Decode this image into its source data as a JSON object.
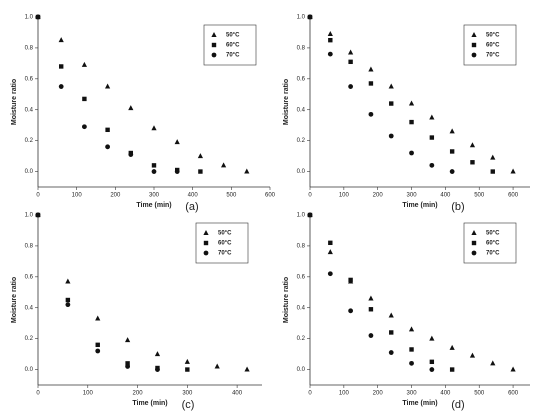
{
  "chart_data": [
    {
      "type": "scatter",
      "label": "(a)",
      "xlabel": "Time (min)",
      "ylabel": "Moisture ratio",
      "xlim": [
        0,
        600
      ],
      "xticks": [
        0,
        100,
        200,
        300,
        400,
        500,
        600
      ],
      "ylim": [
        -0.1,
        1.0
      ],
      "yticks": [
        {
          "value": 0,
          "label": "0.0"
        },
        0.2,
        0.4,
        0.6,
        0.8,
        {
          "value": 1,
          "label": "1.0"
        }
      ],
      "legend": "upper right",
      "series": [
        {
          "name": "50°C",
          "color": "#111111",
          "marker": "triangle",
          "x": [
            0,
            60,
            120,
            180,
            240,
            300,
            360,
            420,
            480,
            540
          ],
          "values": [
            1.0,
            0.85,
            0.69,
            0.55,
            0.41,
            0.28,
            0.19,
            0.1,
            0.04,
            0.0
          ]
        },
        {
          "name": "60°C",
          "color": "#111111",
          "marker": "square",
          "x": [
            0,
            60,
            120,
            180,
            240,
            300,
            360,
            420
          ],
          "values": [
            1.0,
            0.68,
            0.47,
            0.27,
            0.12,
            0.04,
            0.01,
            0.0
          ]
        },
        {
          "name": "70°C",
          "color": "#111111",
          "marker": "circle",
          "x": [
            0,
            60,
            120,
            180,
            240,
            300,
            360
          ],
          "values": [
            1.0,
            0.55,
            0.29,
            0.16,
            0.11,
            0.0,
            0.0
          ]
        }
      ]
    },
    {
      "type": "scatter",
      "label": "(b)",
      "xlabel": "Time (min)",
      "ylabel": "Moisture ratio",
      "xlim": [
        0,
        650
      ],
      "xticks": [
        0,
        100,
        200,
        300,
        400,
        500,
        600
      ],
      "ylim": [
        -0.1,
        1.0
      ],
      "yticks": [
        {
          "value": 0,
          "label": "0.0"
        },
        0.2,
        0.4,
        0.6,
        0.8,
        {
          "value": 1,
          "label": "1.0"
        }
      ],
      "legend": "upper right",
      "series": [
        {
          "name": "50°C",
          "color": "#111111",
          "marker": "triangle",
          "x": [
            0,
            60,
            120,
            180,
            240,
            300,
            360,
            420,
            480,
            540,
            600
          ],
          "values": [
            1.0,
            0.89,
            0.77,
            0.66,
            0.55,
            0.44,
            0.35,
            0.26,
            0.17,
            0.09,
            0.0
          ]
        },
        {
          "name": "60°C",
          "color": "#111111",
          "marker": "square",
          "x": [
            0,
            60,
            120,
            180,
            240,
            300,
            360,
            420,
            480,
            540
          ],
          "values": [
            1.0,
            0.85,
            0.71,
            0.57,
            0.44,
            0.32,
            0.22,
            0.13,
            0.06,
            0.0
          ]
        },
        {
          "name": "70°C",
          "color": "#111111",
          "marker": "circle",
          "x": [
            0,
            60,
            120,
            180,
            240,
            300,
            360,
            420
          ],
          "values": [
            1.0,
            0.76,
            0.55,
            0.37,
            0.23,
            0.12,
            0.04,
            0.0
          ]
        }
      ]
    },
    {
      "type": "scatter",
      "label": "(c)",
      "xlabel": "Time (min)",
      "ylabel": "Moisture ratio",
      "xlim": [
        0,
        450
      ],
      "xticks": [
        0,
        100,
        200,
        300,
        400
      ],
      "ylim": [
        -0.1,
        1.0
      ],
      "yticks": [
        {
          "value": 0,
          "label": "0.0"
        },
        0.2,
        0.4,
        0.6,
        0.8,
        {
          "value": 1,
          "label": "1.0"
        }
      ],
      "legend": "upper right",
      "series": [
        {
          "name": "50°C",
          "color": "#111111",
          "marker": "triangle",
          "x": [
            0,
            60,
            120,
            180,
            240,
            300,
            360,
            420
          ],
          "values": [
            1.0,
            0.57,
            0.33,
            0.19,
            0.1,
            0.05,
            0.02,
            0.0
          ]
        },
        {
          "name": "60°C",
          "color": "#111111",
          "marker": "square",
          "x": [
            0,
            60,
            120,
            180,
            240,
            300
          ],
          "values": [
            1.0,
            0.45,
            0.16,
            0.04,
            0.01,
            0.0
          ]
        },
        {
          "name": "70°C",
          "color": "#111111",
          "marker": "circle",
          "x": [
            0,
            60,
            120,
            180,
            240
          ],
          "values": [
            1.0,
            0.42,
            0.12,
            0.02,
            0.0
          ]
        }
      ]
    },
    {
      "type": "scatter",
      "label": "(d)",
      "xlabel": "Time (min)",
      "ylabel": "Moisture ratio",
      "xlim": [
        0,
        650
      ],
      "xticks": [
        0,
        100,
        200,
        300,
        400,
        500,
        600
      ],
      "ylim": [
        -0.1,
        1.0
      ],
      "yticks": [
        {
          "value": 0,
          "label": "0.0"
        },
        0.2,
        0.4,
        0.6,
        0.8,
        {
          "value": 1,
          "label": "1.0"
        }
      ],
      "legend": "upper right",
      "series": [
        {
          "name": "50°C",
          "color": "#111111",
          "marker": "triangle",
          "x": [
            0,
            60,
            120,
            180,
            240,
            300,
            360,
            420,
            480,
            540,
            600
          ],
          "values": [
            1.0,
            0.76,
            0.57,
            0.46,
            0.35,
            0.26,
            0.2,
            0.14,
            0.09,
            0.04,
            0.0
          ]
        },
        {
          "name": "60°C",
          "color": "#111111",
          "marker": "square",
          "x": [
            0,
            60,
            120,
            180,
            240,
            300,
            360,
            420
          ],
          "values": [
            1.0,
            0.82,
            0.58,
            0.39,
            0.24,
            0.13,
            0.05,
            0.0
          ]
        },
        {
          "name": "70°C",
          "color": "#111111",
          "marker": "circle",
          "x": [
            0,
            60,
            120,
            180,
            240,
            300,
            360
          ],
          "values": [
            1.0,
            0.62,
            0.38,
            0.22,
            0.11,
            0.04,
            0.0
          ]
        }
      ]
    }
  ]
}
